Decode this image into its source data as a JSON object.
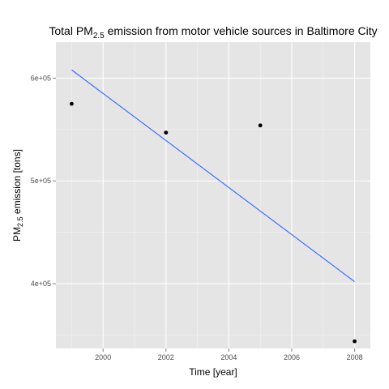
{
  "chart_data": {
    "type": "scatter",
    "title": {
      "prefix": "Total PM",
      "subscript": "2.5",
      "suffix": " emission from motor vehicle sources in Baltimore City"
    },
    "xlabel": "Time [year]",
    "ylabel": {
      "prefix": "PM",
      "subscript": "2.5",
      "suffix": " emission [tons]"
    },
    "xlim": [
      1998.5,
      2008.5
    ],
    "ylim": [
      337000,
      635000
    ],
    "x_ticks": [
      2000,
      2002,
      2004,
      2006,
      2008
    ],
    "x_tick_labels": [
      "2000",
      "2002",
      "2004",
      "2006",
      "2008"
    ],
    "y_ticks": [
      400000,
      500000,
      600000
    ],
    "y_tick_labels": [
      "4e+05",
      "5e+05",
      "6e+05"
    ],
    "grid": true,
    "points": [
      {
        "x": 1999,
        "y": 575000
      },
      {
        "x": 2002,
        "y": 547000
      },
      {
        "x": 2005,
        "y": 554000
      },
      {
        "x": 2008,
        "y": 344000
      }
    ],
    "trend_line": {
      "x": [
        1999,
        2008
      ],
      "y": [
        608000,
        402000
      ]
    },
    "colors": {
      "panel": "#e5e5e5",
      "grid_major": "#ffffff",
      "point": "#000000",
      "trend": "#3366ff"
    }
  }
}
